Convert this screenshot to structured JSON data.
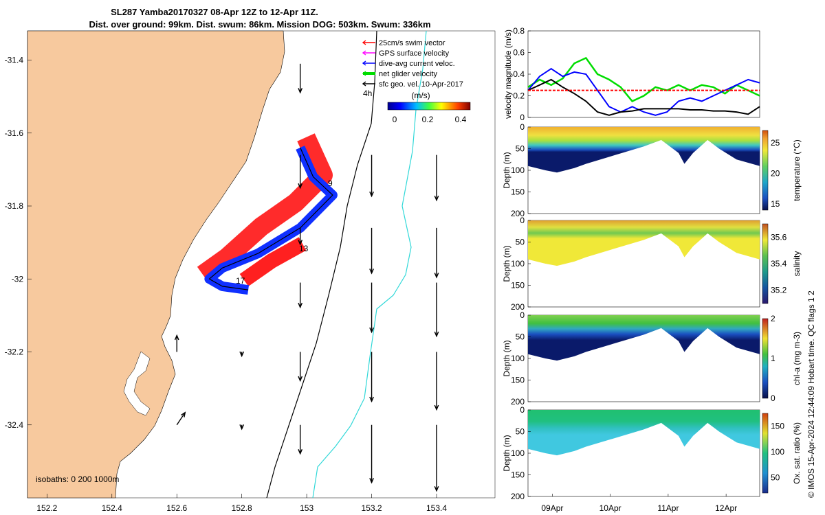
{
  "title": {
    "line1": "SL287 Yamba20170327 08-Apr 12Z to 12-Apr 11Z.",
    "line2": "Dist. over ground: 99km. Dist. swum: 86km. Mission DOG: 503km. Swum: 336km"
  },
  "map": {
    "xticks": [
      "152.2",
      "152.4",
      "152.6",
      "152.8",
      "153",
      "153.2",
      "153.4"
    ],
    "xtick_values": [
      152.2,
      152.4,
      152.6,
      152.8,
      153.0,
      153.2,
      153.4
    ],
    "yticks": [
      "-31.4",
      "-31.6",
      "-31.8",
      "-32",
      "-32.2",
      "-32.4"
    ],
    "ytick_values": [
      -31.4,
      -31.6,
      -31.8,
      -32.0,
      -32.2,
      -32.4
    ],
    "xlim": [
      152.14,
      153.58
    ],
    "ylim": [
      -32.6,
      -31.32
    ],
    "isobaths_label": "isobaths: 0   200  1000m",
    "annotations": [
      "9",
      "13",
      "17",
      "4h"
    ],
    "legend": [
      {
        "label": "25cm/s swim vector",
        "color": "#ff0000"
      },
      {
        "label": "GPS surface velocity",
        "color": "#ff00ff"
      },
      {
        "label": "dive-avg current veloc.",
        "color": "#0000ff"
      },
      {
        "label": "net glider velocity",
        "color": "#00dd00"
      },
      {
        "label": "sfc geo. vel. 10-Apr-2017",
        "color": "#000000"
      }
    ],
    "colorbar": {
      "title": "(m/s)",
      "ticks": [
        "0",
        "0.2",
        "0.4"
      ],
      "tick_values": [
        0,
        0.2,
        0.4
      ],
      "range": [
        0,
        0.5
      ]
    },
    "glider_track": [
      [
        152.98,
        -31.64
      ],
      [
        153.02,
        -31.72
      ],
      [
        153.08,
        -31.77
      ],
      [
        152.98,
        -31.86
      ],
      [
        152.85,
        -31.93
      ],
      [
        152.74,
        -31.97
      ],
      [
        152.7,
        -32.0
      ],
      [
        152.74,
        -32.02
      ],
      [
        152.82,
        -32.03
      ]
    ],
    "geo_arrows": [
      {
        "lon": 152.98,
        "lat": -31.41,
        "u": 0.0,
        "v": -0.35
      },
      {
        "lon": 152.98,
        "lat": -31.66,
        "u": 0.0,
        "v": -0.4
      },
      {
        "lon": 153.2,
        "lat": -31.66,
        "u": 0.0,
        "v": -0.5
      },
      {
        "lon": 153.4,
        "lat": -31.66,
        "u": 0.0,
        "v": -0.55
      },
      {
        "lon": 152.98,
        "lat": -31.86,
        "u": 0.0,
        "v": -0.2
      },
      {
        "lon": 153.2,
        "lat": -31.86,
        "u": 0.0,
        "v": -0.55
      },
      {
        "lon": 153.4,
        "lat": -31.86,
        "u": 0.0,
        "v": -0.6
      },
      {
        "lon": 152.98,
        "lat": -32.01,
        "u": 0.0,
        "v": -0.3
      },
      {
        "lon": 153.2,
        "lat": -32.01,
        "u": 0.0,
        "v": -0.6
      },
      {
        "lon": 153.4,
        "lat": -32.01,
        "u": 0.0,
        "v": -0.65
      },
      {
        "lon": 152.6,
        "lat": -32.2,
        "u": 0.0,
        "v": 0.2
      },
      {
        "lon": 152.8,
        "lat": -32.2,
        "u": 0.0,
        "v": -0.05
      },
      {
        "lon": 152.98,
        "lat": -32.2,
        "u": 0.0,
        "v": -0.35
      },
      {
        "lon": 153.2,
        "lat": -32.2,
        "u": 0.0,
        "v": -0.6
      },
      {
        "lon": 153.4,
        "lat": -32.2,
        "u": 0.0,
        "v": -0.7
      },
      {
        "lon": 152.6,
        "lat": -32.4,
        "u": 0.1,
        "v": 0.15
      },
      {
        "lon": 152.8,
        "lat": -32.4,
        "u": 0.0,
        "v": -0.05
      },
      {
        "lon": 152.98,
        "lat": -32.4,
        "u": 0.0,
        "v": -0.35
      },
      {
        "lon": 153.2,
        "lat": -32.4,
        "u": 0.0,
        "v": -0.7
      },
      {
        "lon": 153.4,
        "lat": -32.4,
        "u": 0.0,
        "v": -0.8
      }
    ]
  },
  "chart_data": [
    {
      "type": "line",
      "ylabel": "velocity magnitude (m/s)",
      "ylim": [
        0,
        0.8
      ],
      "yticks": [
        "0",
        "0.2",
        "0.4",
        "0.6",
        "0.8"
      ],
      "tick_values": [
        0,
        0.2,
        0.4,
        0.6,
        0.8
      ],
      "x": [
        0,
        0.2,
        0.4,
        0.6,
        0.8,
        1.0,
        1.2,
        1.4,
        1.6,
        1.8,
        2.0,
        2.2,
        2.4,
        2.6,
        2.8,
        3.0,
        3.2,
        3.4,
        3.6,
        3.8,
        4.0
      ],
      "series": [
        {
          "color": "#00dd00",
          "values": [
            0.28,
            0.35,
            0.3,
            0.36,
            0.5,
            0.55,
            0.4,
            0.35,
            0.28,
            0.15,
            0.2,
            0.28,
            0.25,
            0.3,
            0.25,
            0.3,
            0.28,
            0.22,
            0.3,
            0.25,
            0.2
          ]
        },
        {
          "color": "#0000ff",
          "values": [
            0.25,
            0.38,
            0.45,
            0.38,
            0.42,
            0.4,
            0.25,
            0.1,
            0.05,
            0.1,
            0.05,
            0.02,
            0.05,
            0.15,
            0.18,
            0.15,
            0.2,
            0.25,
            0.3,
            0.35,
            0.32
          ]
        },
        {
          "color": "#000000",
          "values": [
            0.25,
            0.3,
            0.35,
            0.28,
            0.22,
            0.15,
            0.05,
            0.02,
            0.05,
            0.06,
            0.08,
            0.08,
            0.08,
            0.08,
            0.07,
            0.07,
            0.06,
            0.06,
            0.05,
            0.03,
            0.1
          ]
        },
        {
          "color": "#ff0000",
          "dashed": true,
          "values": [
            0.25,
            0.25,
            0.25,
            0.25,
            0.25,
            0.25,
            0.25,
            0.25,
            0.25,
            0.25,
            0.25,
            0.25,
            0.25,
            0.25,
            0.25,
            0.25,
            0.25,
            0.25,
            0.25,
            0.25,
            0.25
          ]
        }
      ]
    },
    {
      "type": "heatmap",
      "ylabel": "Depth (m)",
      "cbar_label": "temperature (°C)",
      "yticks": [
        "0",
        "50",
        "100",
        "150",
        "200"
      ],
      "cbar_ticks": [
        "25",
        "20",
        "15"
      ],
      "cbar_range": [
        14,
        27
      ]
    },
    {
      "type": "heatmap",
      "ylabel": "Depth (m)",
      "cbar_label": "salinity",
      "yticks": [
        "0",
        "50",
        "100",
        "150",
        "200"
      ],
      "cbar_ticks": [
        "35.6",
        "35.4",
        "35.2"
      ],
      "cbar_range": [
        35.1,
        35.7
      ]
    },
    {
      "type": "heatmap",
      "ylabel": "Depth (m)",
      "cbar_label": "chl-a (mg m-3)",
      "yticks": [
        "0",
        "50",
        "100",
        "150",
        "200"
      ],
      "cbar_ticks": [
        "2",
        "1",
        "0"
      ],
      "cbar_range": [
        0,
        2
      ]
    },
    {
      "type": "heatmap",
      "ylabel": "Depth (m)",
      "cbar_label": "Ox. sat. ratio (%)",
      "yticks": [
        "0",
        "50",
        "100",
        "150",
        "200"
      ],
      "cbar_ticks": [
        "150",
        "100",
        "50"
      ],
      "cbar_range": [
        20,
        175
      ]
    }
  ],
  "time_axis": {
    "ticks": [
      "09Apr",
      "10Apr",
      "11Apr",
      "12Apr"
    ]
  },
  "bottom_profile": [
    [
      0,
      90
    ],
    [
      0.3,
      100
    ],
    [
      0.5,
      105
    ],
    [
      0.8,
      95
    ],
    [
      1.0,
      85
    ],
    [
      1.5,
      65
    ],
    [
      2.0,
      45
    ],
    [
      2.3,
      30
    ],
    [
      2.6,
      60
    ],
    [
      2.7,
      85
    ],
    [
      2.85,
      60
    ],
    [
      3.1,
      30
    ],
    [
      3.3,
      50
    ],
    [
      3.6,
      75
    ],
    [
      4.0,
      90
    ]
  ],
  "credit": "© IMOS 15-Apr-2024 12:44:09 Hobart time. QC flags 1  2"
}
